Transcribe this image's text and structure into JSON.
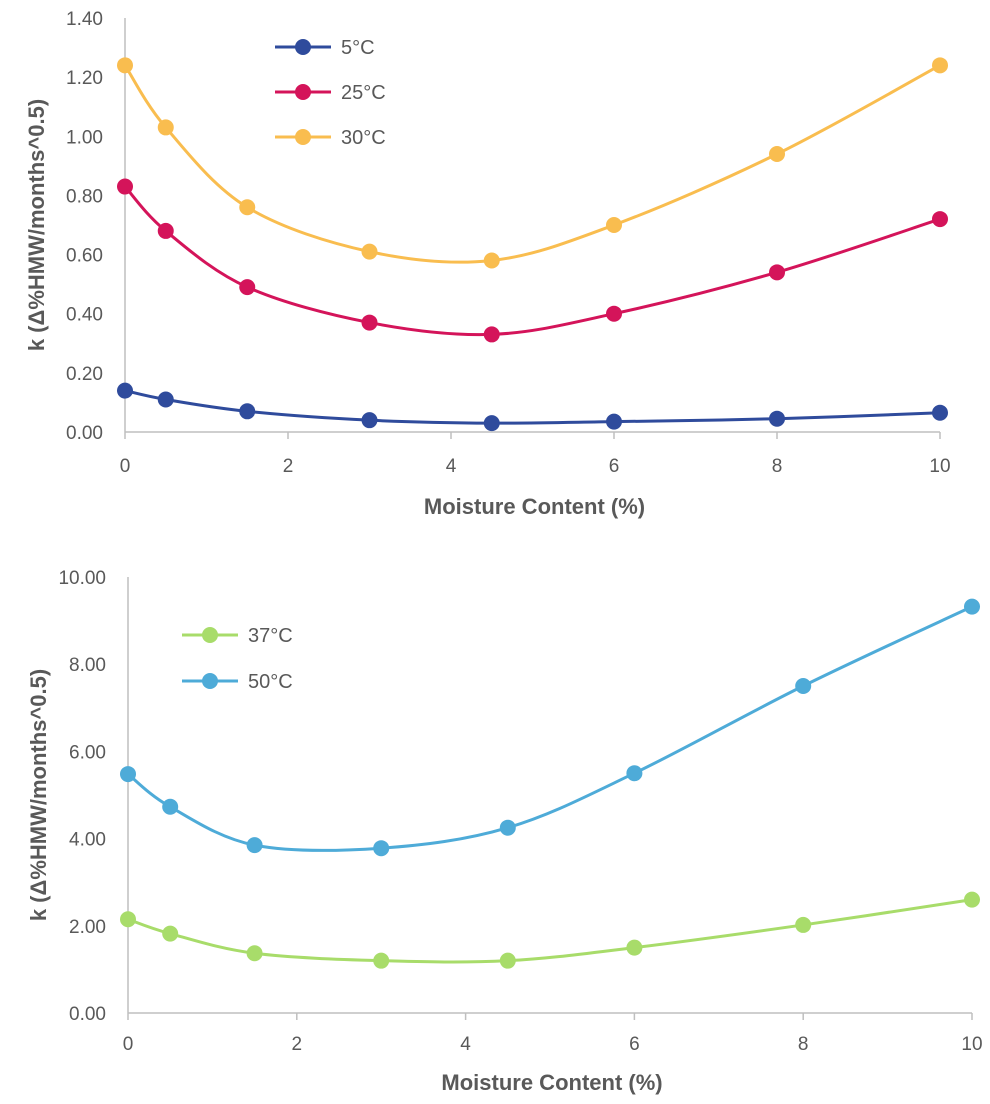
{
  "chart_data": [
    {
      "type": "line",
      "smooth": true,
      "x": [
        0,
        0.5,
        1.5,
        3,
        4.5,
        6,
        8,
        10
      ],
      "xlim": [
        0,
        10
      ],
      "xticks": [
        0,
        2,
        4,
        6,
        8,
        10
      ],
      "ylim": [
        0,
        1.4
      ],
      "yticks": [
        "0.00",
        "0.20",
        "0.40",
        "0.60",
        "0.80",
        "1.00",
        "1.20",
        "1.40"
      ],
      "xlabel": "Moisture Content (%)",
      "ylabel": "k (Δ%HMW/months^0.5)",
      "legend_position": "top-left",
      "grid": false,
      "series": [
        {
          "name": "5°C",
          "color": "#2f4b9c",
          "values": [
            0.14,
            0.11,
            0.07,
            0.04,
            0.03,
            0.035,
            0.045,
            0.065
          ]
        },
        {
          "name": "25°C",
          "color": "#d4145a",
          "values": [
            0.83,
            0.68,
            0.49,
            0.37,
            0.33,
            0.4,
            0.54,
            0.72
          ]
        },
        {
          "name": "30°C",
          "color": "#f9bd4f",
          "values": [
            1.24,
            1.03,
            0.76,
            0.61,
            0.58,
            0.7,
            0.94,
            1.24
          ]
        }
      ]
    },
    {
      "type": "line",
      "smooth": true,
      "x": [
        0,
        0.5,
        1.5,
        3,
        4.5,
        6,
        8,
        10
      ],
      "xlim": [
        0,
        10
      ],
      "xticks": [
        0,
        2,
        4,
        6,
        8,
        10
      ],
      "ylim": [
        0,
        10
      ],
      "yticks": [
        "0.00",
        "2.00",
        "4.00",
        "6.00",
        "8.00",
        "10.00"
      ],
      "xlabel": "Moisture Content (%)",
      "ylabel": "k (Δ%HMW/months^0.5)",
      "legend_position": "top-left",
      "grid": false,
      "series": [
        {
          "name": "37°C",
          "color": "#a8dc6a",
          "values": [
            2.15,
            1.82,
            1.37,
            1.2,
            1.2,
            1.5,
            2.02,
            2.6
          ]
        },
        {
          "name": "50°C",
          "color": "#4eabd8",
          "values": [
            5.48,
            4.73,
            3.85,
            3.78,
            4.25,
            5.5,
            7.5,
            9.32
          ]
        }
      ]
    }
  ]
}
